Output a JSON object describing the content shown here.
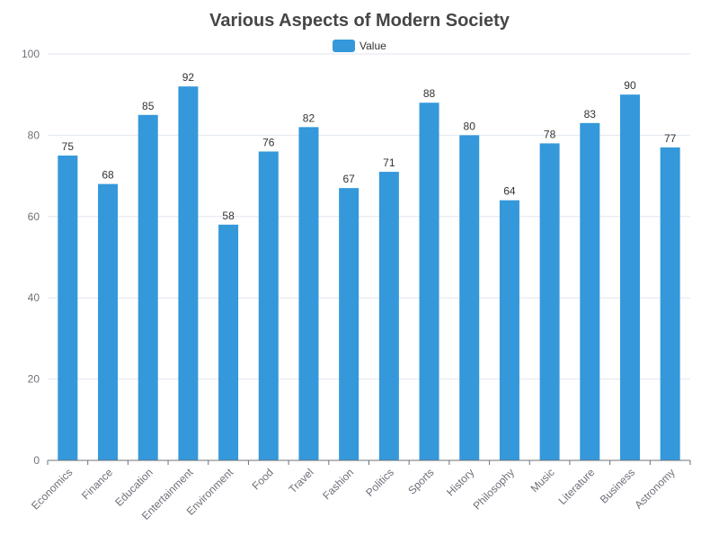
{
  "chart_data": {
    "type": "bar",
    "title": "Various Aspects of Modern Society",
    "xlabel": "",
    "ylabel": "",
    "categories": [
      "Economics",
      "Finance",
      "Education",
      "Entertainment",
      "Environment",
      "Food",
      "Travel",
      "Fashion",
      "Politics",
      "Sports",
      "History",
      "Philosophy",
      "Music",
      "Literature",
      "Business",
      "Astronomy"
    ],
    "series": [
      {
        "name": "Value",
        "values": [
          75,
          68,
          85,
          92,
          58,
          76,
          82,
          67,
          71,
          88,
          80,
          64,
          78,
          83,
          90,
          77
        ],
        "color": "#3498db"
      }
    ],
    "ylim": [
      0,
      100
    ],
    "yticks": [
      0,
      20,
      40,
      60,
      80,
      100
    ],
    "grid": true,
    "legend": "top-center",
    "show_data_labels": true
  }
}
